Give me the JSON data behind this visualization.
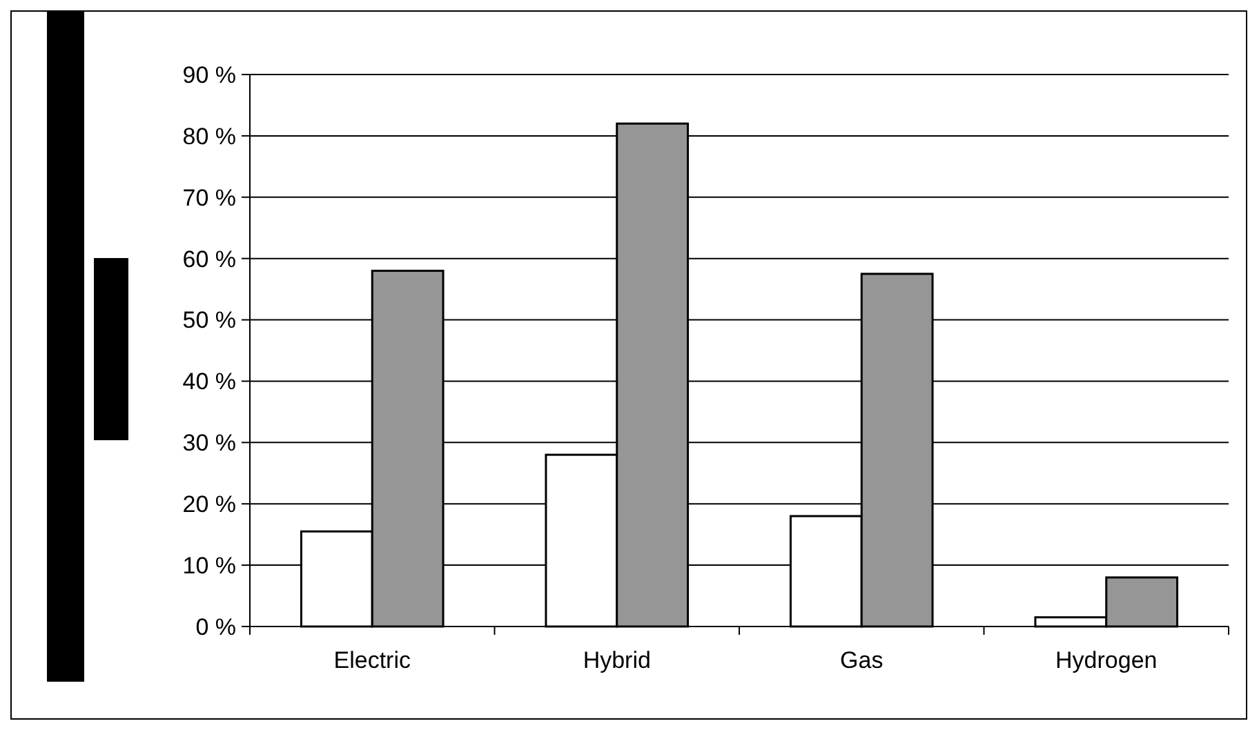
{
  "chart_data": {
    "type": "bar",
    "categories": [
      "Electric",
      "Hybrid",
      "Gas",
      "Hydrogen"
    ],
    "series": [
      {
        "color": "#ffffff",
        "values": [
          15.5,
          28,
          18,
          1.5
        ]
      },
      {
        "color": "#969696",
        "values": [
          58,
          82,
          57.5,
          8
        ]
      }
    ],
    "ylim": [
      0,
      90
    ],
    "yticks": [
      {
        "value": 0,
        "label": "0 %"
      },
      {
        "value": 10,
        "label": "10 %"
      },
      {
        "value": 20,
        "label": "20 %"
      },
      {
        "value": 30,
        "label": "30 %"
      },
      {
        "value": 40,
        "label": "40 %"
      },
      {
        "value": 50,
        "label": "50 %"
      },
      {
        "value": 60,
        "label": "60 %"
      },
      {
        "value": 70,
        "label": "70 %"
      },
      {
        "value": 80,
        "label": "80 %"
      },
      {
        "value": 90,
        "label": "90 %"
      }
    ],
    "grid": "y"
  }
}
